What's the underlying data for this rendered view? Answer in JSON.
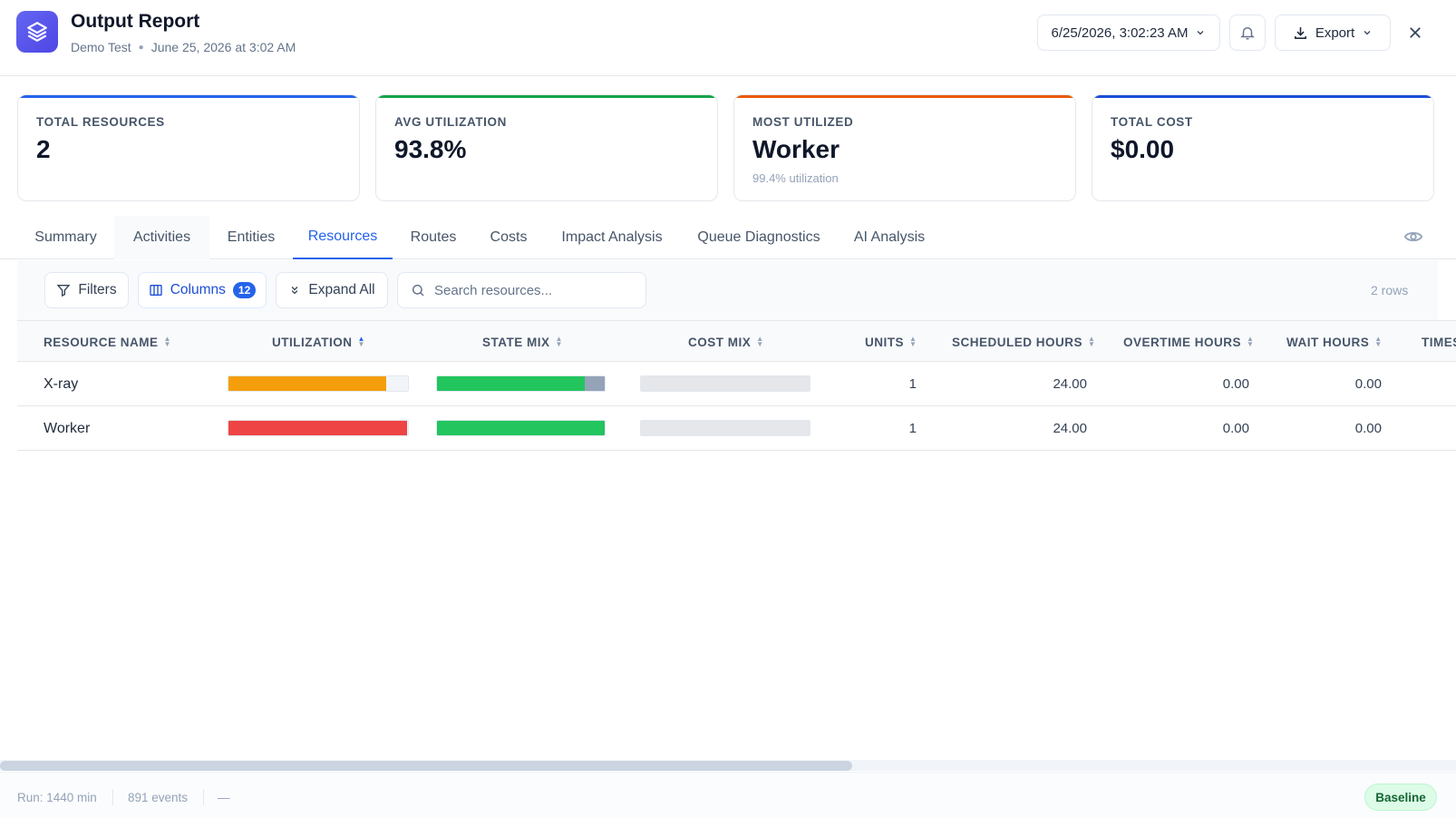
{
  "header": {
    "title": "Output Report",
    "project": "Demo Test",
    "run_date": "June 25, 2026 at 3:02 AM",
    "date_selector": "6/25/2026, 3:02:23 AM",
    "export_label": "Export",
    "brand_color": "#4f46e5"
  },
  "kpis": [
    {
      "label": "TOTAL RESOURCES",
      "value": "2",
      "note": "",
      "accent": "#2563eb"
    },
    {
      "label": "AVG UTILIZATION",
      "value": "93.8%",
      "note": "",
      "accent": "#16a34a"
    },
    {
      "label": "MOST UTILIZED",
      "value": "Worker",
      "note": "99.4% utilization",
      "accent": "#ea580c"
    },
    {
      "label": "TOTAL COST",
      "value": "$0.00",
      "note": "",
      "accent": "#1d4ed8"
    }
  ],
  "tabs": [
    {
      "label": "Summary"
    },
    {
      "label": "Activities"
    },
    {
      "label": "Entities"
    },
    {
      "label": "Resources",
      "active": true
    },
    {
      "label": "Routes"
    },
    {
      "label": "Costs"
    },
    {
      "label": "Impact Analysis"
    },
    {
      "label": "Queue Diagnostics"
    },
    {
      "label": "AI Analysis"
    }
  ],
  "toolbar": {
    "filters_label": "Filters",
    "columns_label": "Columns",
    "columns_count": "12",
    "expand_label": "Expand All",
    "search_placeholder": "Search resources...",
    "row_count": "2 rows"
  },
  "table": {
    "columns": [
      "RESOURCE NAME",
      "UTILIZATION",
      "STATE MIX",
      "COST MIX",
      "UNITS",
      "SCHEDULED HOURS",
      "OVERTIME HOURS",
      "WAIT HOURS",
      "TIMES"
    ],
    "rows": [
      {
        "name": "X-ray",
        "utilization": 0.88,
        "util_color": "#f59e0b",
        "state_busy": 0.88,
        "state_idle": 0.12,
        "units": "1",
        "scheduled_hours": "24.00",
        "overtime_hours": "0.00",
        "wait_hours": "0.00"
      },
      {
        "name": "Worker",
        "utilization": 0.994,
        "util_color": "#ef4444",
        "state_busy": 1.0,
        "state_idle": 0.0,
        "units": "1",
        "scheduled_hours": "24.00",
        "overtime_hours": "0.00",
        "wait_hours": "0.00"
      }
    ]
  },
  "footer": {
    "run": "Run: 1440 min",
    "events": "891 events",
    "extra": "—",
    "scenario": "Baseline"
  }
}
